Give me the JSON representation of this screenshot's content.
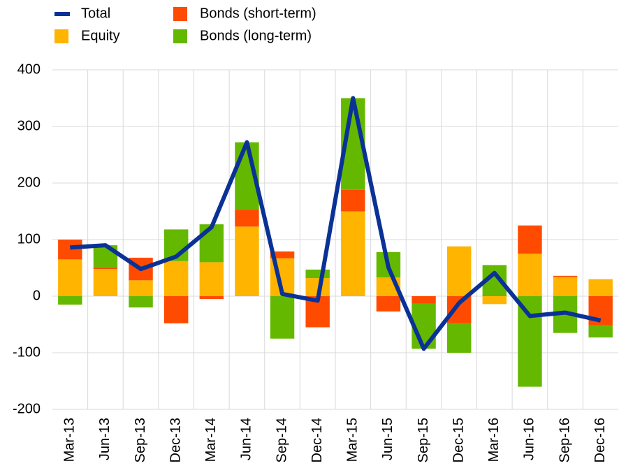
{
  "chart_data": {
    "type": "stacked-bar-line",
    "categories": [
      "Mar-13",
      "Jun-13",
      "Sep-13",
      "Dec-13",
      "Mar-14",
      "Jun-14",
      "Sep-14",
      "Dec-14",
      "Mar-15",
      "Jun-15",
      "Sep-15",
      "Dec-15",
      "Mar-16",
      "Jun-16",
      "Sep-16",
      "Dec-16"
    ],
    "series": [
      {
        "name": "Total",
        "color": "#0a3296",
        "kind": "line",
        "values": [
          86,
          90,
          48,
          70,
          122,
          272,
          4,
          -8,
          350,
          51,
          -93,
          -12,
          41,
          -35,
          -29,
          -43
        ]
      },
      {
        "name": "Equity",
        "color": "#ffb400",
        "kind": "bar",
        "values": [
          65,
          48,
          28,
          62,
          60,
          123,
          67,
          32,
          150,
          33,
          0,
          88,
          -14,
          75,
          34,
          30
        ]
      },
      {
        "name": "Bonds (short-term)",
        "color": "#ff4b00",
        "kind": "bar",
        "values": [
          35,
          3,
          40,
          -48,
          -5,
          30,
          12,
          -55,
          38,
          -27,
          -13,
          -48,
          0,
          50,
          2,
          -52
        ]
      },
      {
        "name": "Bonds (long-term)",
        "color": "#65b800",
        "kind": "bar",
        "values": [
          -15,
          39,
          -20,
          56,
          67,
          119,
          -75,
          15,
          162,
          45,
          -80,
          -52,
          55,
          -160,
          -65,
          -21
        ]
      }
    ],
    "ylim": [
      -200,
      400
    ],
    "yticks": [
      -200,
      -100,
      0,
      100,
      200,
      300,
      400
    ],
    "grid": true
  }
}
